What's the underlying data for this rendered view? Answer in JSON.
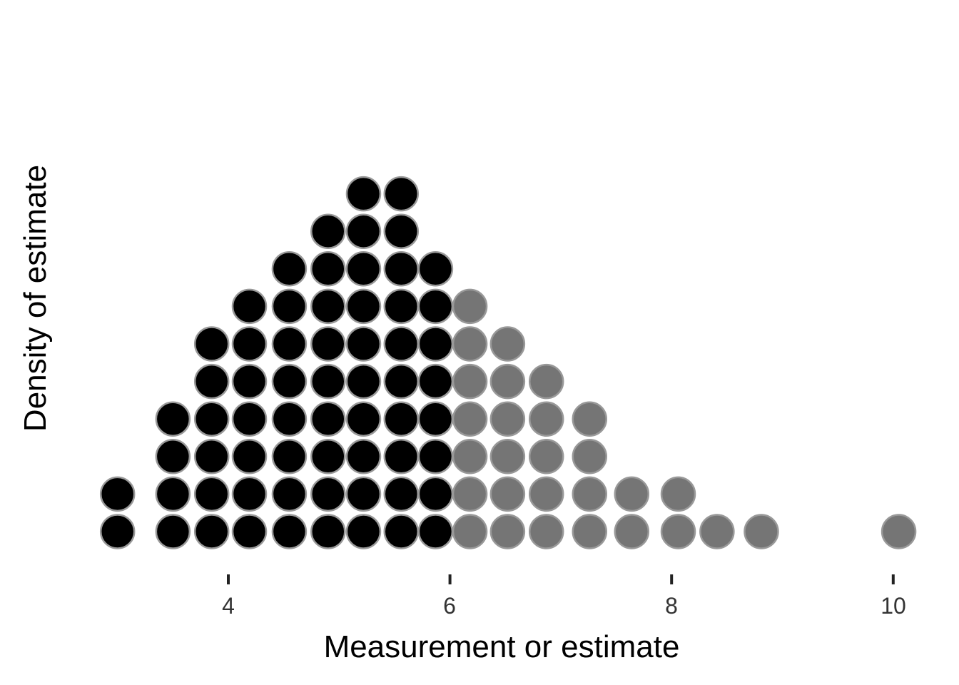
{
  "chart_data": {
    "type": "dotplot",
    "xlabel": "Measurement or estimate",
    "ylabel": "Density of estimate",
    "xlim": [
      2.7,
      10.2
    ],
    "xticks": [
      4,
      6,
      8,
      10
    ],
    "xtick_labels": [
      "4",
      "6",
      "8",
      "10"
    ],
    "grid": false,
    "legend": "none",
    "colors": {
      "group_low": "#000000",
      "group_high": "#757575",
      "dot_outline": "#999999"
    },
    "columns": [
      {
        "x": 3.0,
        "count": 2,
        "group": "group_low"
      },
      {
        "x": 3.5,
        "count": 4,
        "group": "group_low"
      },
      {
        "x": 3.85,
        "count": 6,
        "group": "group_low"
      },
      {
        "x": 4.19,
        "count": 7,
        "group": "group_low"
      },
      {
        "x": 4.55,
        "count": 8,
        "group": "group_low"
      },
      {
        "x": 4.9,
        "count": 9,
        "group": "group_low"
      },
      {
        "x": 5.22,
        "count": 10,
        "group": "group_low"
      },
      {
        "x": 5.56,
        "count": 10,
        "group": "group_low"
      },
      {
        "x": 5.87,
        "count": 8,
        "group": "group_low"
      },
      {
        "x": 6.18,
        "count": 7,
        "group": "group_high"
      },
      {
        "x": 6.52,
        "count": 6,
        "group": "group_high"
      },
      {
        "x": 6.87,
        "count": 5,
        "group": "group_high"
      },
      {
        "x": 7.26,
        "count": 4,
        "group": "group_high"
      },
      {
        "x": 7.64,
        "count": 2,
        "group": "group_high"
      },
      {
        "x": 8.06,
        "count": 2,
        "group": "group_high"
      },
      {
        "x": 8.41,
        "count": 1,
        "group": "group_high"
      },
      {
        "x": 8.81,
        "count": 1,
        "group": "group_high"
      },
      {
        "x": 10.05,
        "count": 1,
        "group": "group_high"
      }
    ]
  }
}
